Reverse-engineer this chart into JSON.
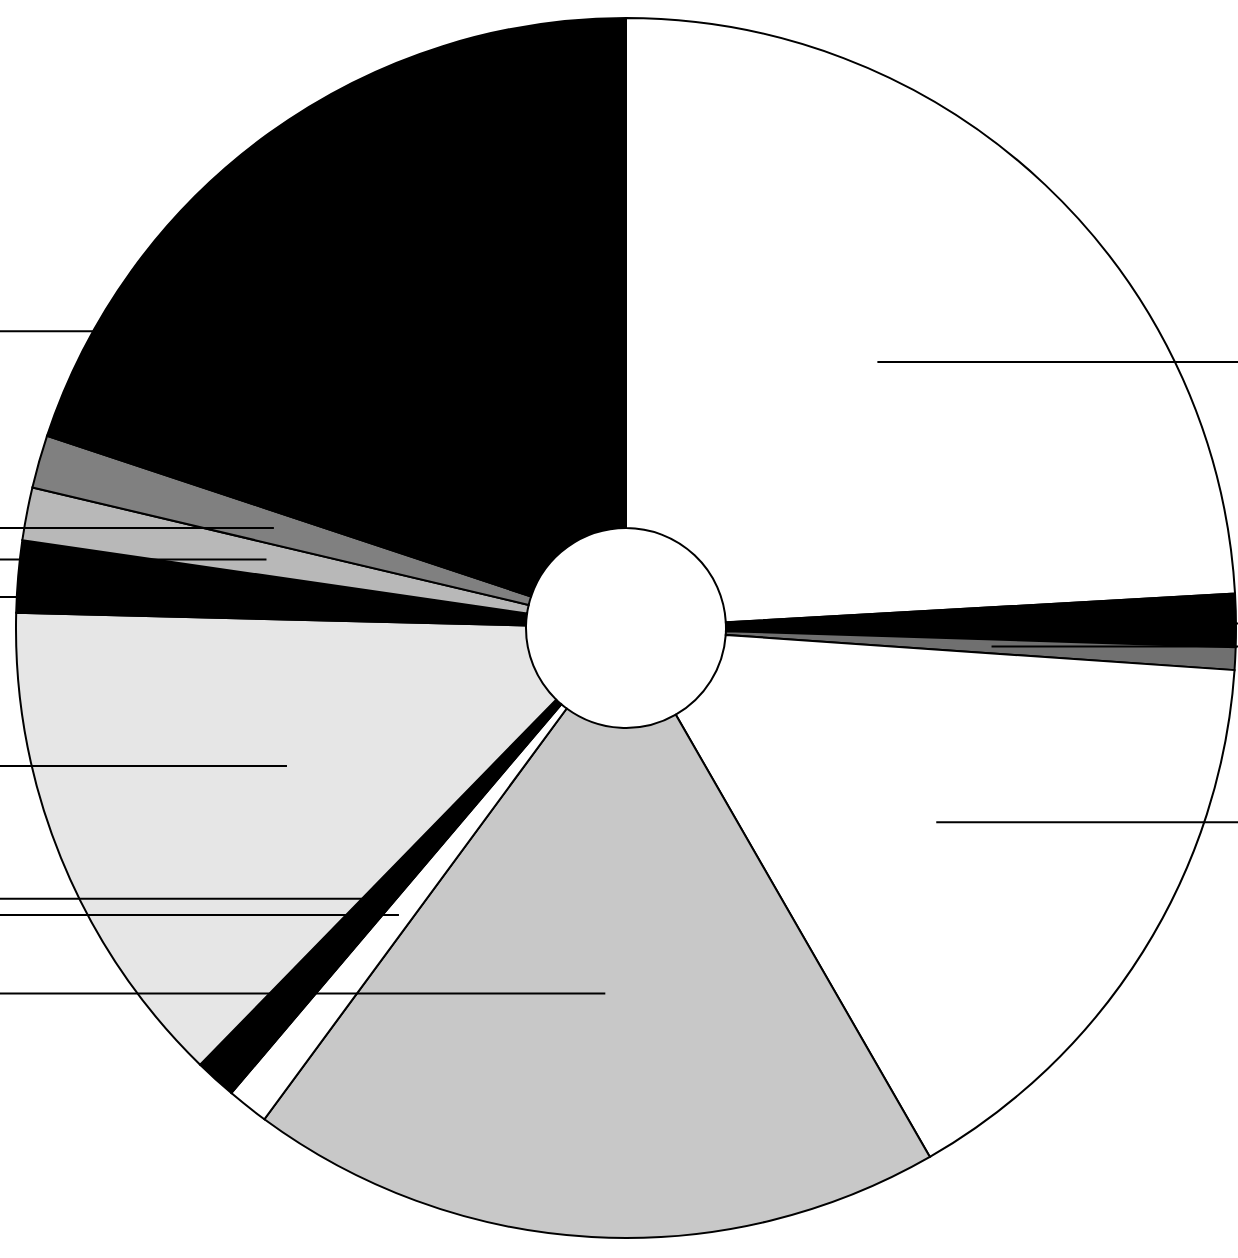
{
  "chart_data": {
    "type": "donut",
    "categories": [
      null,
      null,
      null,
      null,
      null,
      null,
      null,
      null,
      null,
      null,
      null,
      null
    ],
    "values": [
      24.1,
      1.4,
      0.6,
      15.6,
      18.4,
      1.1,
      1.1,
      13.1,
      1.9,
      1.4,
      1.4,
      19.9
    ],
    "colors": [
      "#ffffff",
      "#000000",
      "#707070",
      "#ffffff",
      "#c8c8c8",
      "#ffffff",
      "#000000",
      "#e6e6e6",
      "#000000",
      "#b8b8b8",
      "#808080",
      "#000000"
    ]
  }
}
